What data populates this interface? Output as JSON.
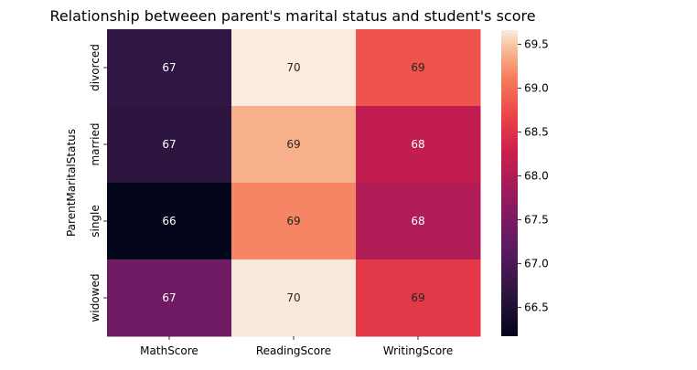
{
  "chart_data": {
    "type": "heatmap",
    "title": "Relationship betweeen parent's marital status and student's score",
    "xlabel": "",
    "ylabel": "ParentMaritalStatus",
    "columns": [
      "MathScore",
      "ReadingScore",
      "WritingScore"
    ],
    "rows": [
      "divorced",
      "married",
      "single",
      "widowed"
    ],
    "values": [
      [
        66.69,
        69.66,
        68.8
      ],
      [
        66.66,
        69.39,
        68.17
      ],
      [
        66.17,
        69.16,
        67.99
      ],
      [
        67.37,
        69.65,
        68.56
      ]
    ],
    "annotations": [
      [
        "67",
        "70",
        "69"
      ],
      [
        "67",
        "69",
        "68"
      ],
      [
        "66",
        "69",
        "68"
      ],
      [
        "67",
        "70",
        "69"
      ]
    ],
    "colorbar": {
      "min": 66.17,
      "max": 69.66,
      "ticks": [
        "66.5",
        "67.0",
        "67.5",
        "68.0",
        "68.5",
        "69.0",
        "69.5"
      ],
      "colormap": "rocket"
    }
  }
}
